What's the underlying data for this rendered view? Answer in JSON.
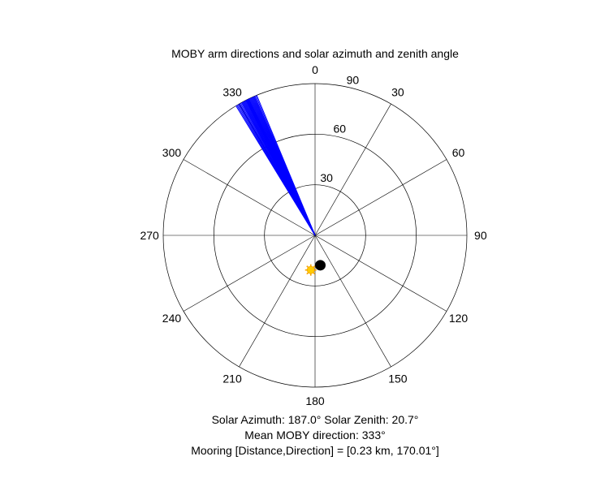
{
  "chart_data": {
    "type": "polar",
    "title": "MOBY arm directions and solar azimuth and zenith angle",
    "theta_zero": "top",
    "theta_direction": "clockwise",
    "r_max": 90,
    "r_ticks": [
      "30",
      "60",
      "90"
    ],
    "r_tick_values": [
      30,
      60,
      90
    ],
    "theta_ticks": [
      "0",
      "30",
      "60",
      "90",
      "120",
      "150",
      "180",
      "210",
      "240",
      "270",
      "300",
      "330"
    ],
    "theta_tick_values": [
      0,
      30,
      60,
      90,
      120,
      150,
      180,
      210,
      240,
      270,
      300,
      330
    ],
    "series": [
      {
        "kind": "arm-directions",
        "color": "#0000ff",
        "r": 90,
        "theta_deg": [
          328.6,
          329.0,
          329.4,
          329.8,
          330.2,
          330.6,
          331.0,
          331.3,
          331.6,
          331.9,
          332.2,
          332.5,
          332.8,
          333.0,
          333.2,
          333.4,
          333.6,
          333.8,
          334.0,
          334.2,
          334.5,
          334.8,
          335.1,
          335.4,
          335.7,
          336.0,
          336.3,
          336.6,
          337.0,
          337.4
        ]
      },
      {
        "kind": "sun-marker",
        "color": "#ffcc00",
        "theta_deg": 187.0,
        "r": 20.7
      },
      {
        "kind": "mooring-marker",
        "color": "#000000",
        "theta_deg": 170.01,
        "r": 18
      }
    ]
  },
  "captions": {
    "solar_line": "Solar Azimuth: 187.0°    Solar Zenith: 20.7°",
    "mean_line": "Mean MOBY direction: 333°",
    "mooring_line": "Mooring [Distance,Direction] = [0.23 km, 170.01°]"
  }
}
